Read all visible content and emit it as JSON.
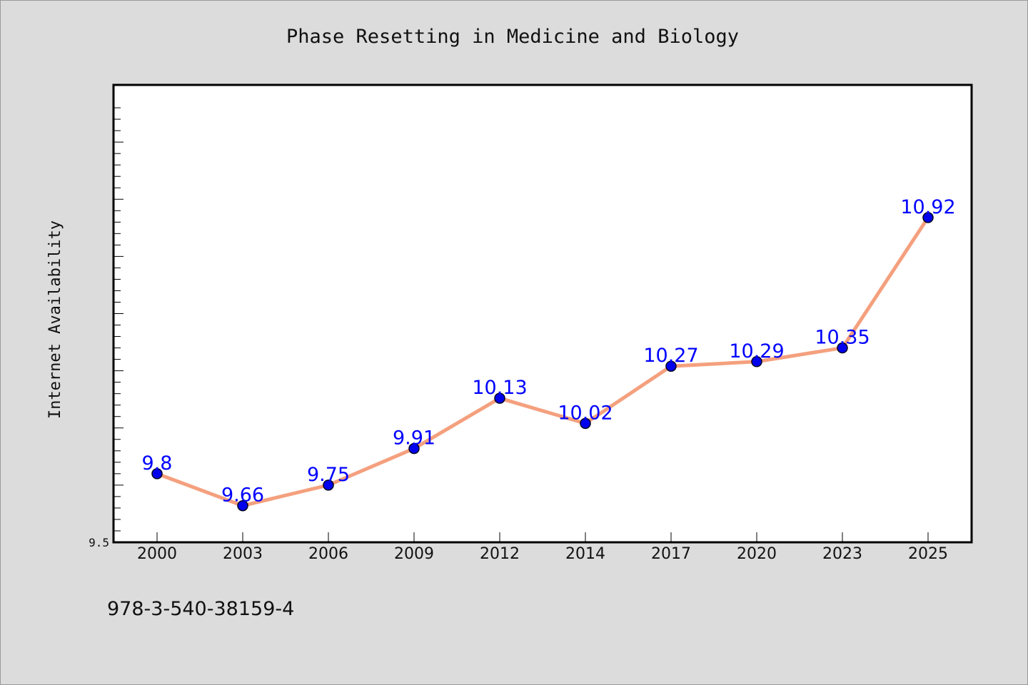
{
  "chart_data": {
    "type": "line",
    "title": "Phase Resetting in Medicine and Biology",
    "ylabel": "Internet Availability",
    "xlabel": "",
    "categories": [
      "2000",
      "2003",
      "2006",
      "2009",
      "2012",
      "2014",
      "2017",
      "2020",
      "2023",
      "2025"
    ],
    "values": [
      9.8,
      9.66,
      9.75,
      9.91,
      10.13,
      10.02,
      10.27,
      10.29,
      10.35,
      10.92
    ],
    "value_labels": [
      "9.8",
      "9.66",
      "9.75",
      "9.91",
      "10.13",
      "10.02",
      "10.27",
      "10.29",
      "10.35",
      "10.92"
    ],
    "ylim": [
      9.5,
      11.5
    ],
    "yticks_labeled": [
      "9.5"
    ],
    "grid": false,
    "legend": "none",
    "line_color": "#f4a07e",
    "marker_color": "#0000ee",
    "label_color": "#0000ff"
  },
  "footer": {
    "isbn": "978-3-540-38159-4"
  }
}
